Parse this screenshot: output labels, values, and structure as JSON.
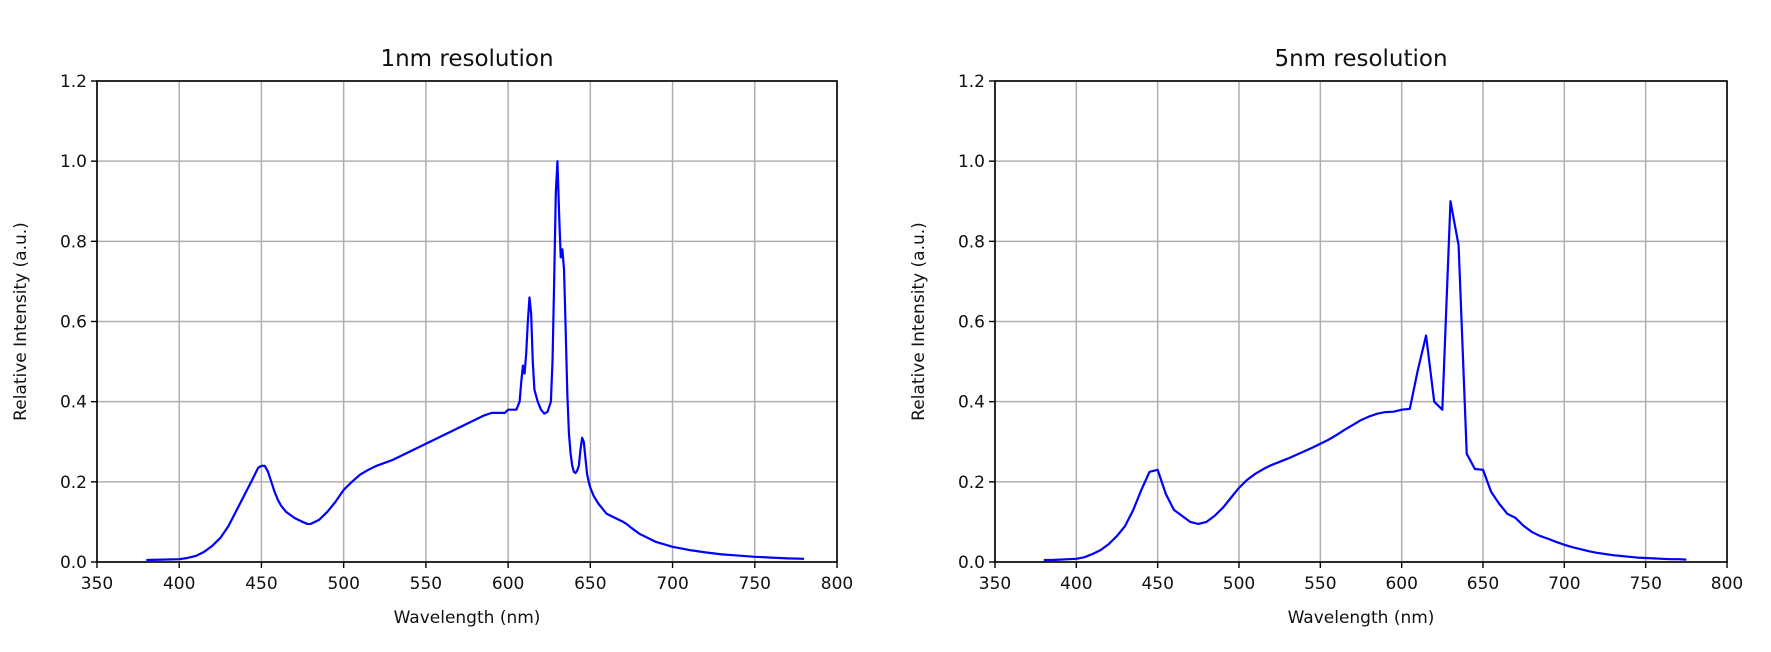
{
  "figure": {
    "background": "#ffffff"
  },
  "chart_data": [
    {
      "type": "line",
      "title": "1nm resolution",
      "xlabel": "Wavelength (nm)",
      "ylabel": "Relative Intensity (a.u.)",
      "xlim": [
        350,
        800
      ],
      "ylim": [
        0.0,
        1.2
      ],
      "xticks": [
        "350",
        "400",
        "450",
        "500",
        "550",
        "600",
        "650",
        "700",
        "750",
        "800"
      ],
      "yticks": [
        "0.0",
        "0.2",
        "0.4",
        "0.6",
        "0.8",
        "1.0",
        "1.2"
      ],
      "grid": true,
      "legend": "none",
      "series": [
        {
          "color": "#0000ff",
          "x": [
            380,
            390,
            400,
            405,
            410,
            415,
            420,
            425,
            430,
            435,
            440,
            445,
            448,
            450,
            452,
            454,
            456,
            458,
            460,
            462,
            465,
            470,
            475,
            478,
            480,
            485,
            490,
            495,
            500,
            505,
            510,
            515,
            520,
            530,
            540,
            550,
            560,
            570,
            580,
            585,
            590,
            595,
            598,
            600,
            603,
            605,
            607,
            608,
            609,
            610,
            611,
            612,
            613,
            614,
            615,
            616,
            618,
            620,
            622,
            624,
            626,
            627,
            628,
            629,
            630,
            631,
            632,
            633,
            634,
            635,
            636,
            637,
            638,
            639,
            640,
            641,
            642,
            643,
            644,
            645,
            646,
            647,
            648,
            649,
            650,
            652,
            655,
            658,
            660,
            665,
            670,
            672,
            675,
            680,
            690,
            700,
            710,
            720,
            730,
            740,
            750,
            760,
            770,
            780
          ],
          "y": [
            0.005,
            0.006,
            0.007,
            0.01,
            0.015,
            0.025,
            0.04,
            0.06,
            0.09,
            0.13,
            0.17,
            0.21,
            0.235,
            0.24,
            0.24,
            0.225,
            0.2,
            0.175,
            0.155,
            0.14,
            0.125,
            0.11,
            0.1,
            0.095,
            0.095,
            0.105,
            0.125,
            0.15,
            0.18,
            0.2,
            0.218,
            0.23,
            0.24,
            0.255,
            0.275,
            0.295,
            0.315,
            0.335,
            0.355,
            0.365,
            0.372,
            0.372,
            0.372,
            0.38,
            0.38,
            0.38,
            0.4,
            0.45,
            0.49,
            0.47,
            0.52,
            0.6,
            0.66,
            0.62,
            0.5,
            0.43,
            0.4,
            0.38,
            0.37,
            0.375,
            0.4,
            0.5,
            0.7,
            0.92,
            1.0,
            0.87,
            0.76,
            0.78,
            0.73,
            0.58,
            0.42,
            0.32,
            0.27,
            0.24,
            0.225,
            0.222,
            0.228,
            0.24,
            0.28,
            0.31,
            0.3,
            0.26,
            0.22,
            0.2,
            0.185,
            0.165,
            0.145,
            0.13,
            0.12,
            0.11,
            0.1,
            0.095,
            0.085,
            0.07,
            0.05,
            0.038,
            0.03,
            0.024,
            0.019,
            0.016,
            0.013,
            0.011,
            0.009,
            0.008
          ]
        }
      ]
    },
    {
      "type": "line",
      "title": "5nm resolution",
      "xlabel": "Wavelength (nm)",
      "ylabel": "Relative Intensity (a.u.)",
      "xlim": [
        350,
        800
      ],
      "ylim": [
        0.0,
        1.2
      ],
      "xticks": [
        "350",
        "400",
        "450",
        "500",
        "550",
        "600",
        "650",
        "700",
        "750",
        "800"
      ],
      "yticks": [
        "0.0",
        "0.2",
        "0.4",
        "0.6",
        "0.8",
        "1.0",
        "1.2"
      ],
      "grid": true,
      "legend": "none",
      "series": [
        {
          "color": "#0000ff",
          "x": [
            380,
            385,
            390,
            395,
            400,
            405,
            410,
            415,
            420,
            425,
            430,
            435,
            440,
            445,
            450,
            455,
            460,
            465,
            470,
            475,
            480,
            485,
            490,
            495,
            500,
            505,
            510,
            515,
            520,
            525,
            530,
            535,
            540,
            545,
            550,
            555,
            560,
            565,
            570,
            575,
            580,
            585,
            590,
            595,
            600,
            605,
            610,
            615,
            620,
            625,
            630,
            635,
            640,
            645,
            650,
            655,
            660,
            665,
            670,
            675,
            680,
            685,
            690,
            695,
            700,
            705,
            710,
            715,
            720,
            725,
            730,
            735,
            740,
            745,
            750,
            755,
            760,
            765,
            770,
            775
          ],
          "y": [
            0.005,
            0.005,
            0.006,
            0.007,
            0.008,
            0.012,
            0.02,
            0.03,
            0.045,
            0.065,
            0.09,
            0.13,
            0.18,
            0.225,
            0.23,
            0.17,
            0.13,
            0.115,
            0.1,
            0.095,
            0.1,
            0.115,
            0.135,
            0.16,
            0.185,
            0.205,
            0.22,
            0.232,
            0.242,
            0.25,
            0.258,
            0.267,
            0.276,
            0.285,
            0.295,
            0.305,
            0.317,
            0.33,
            0.342,
            0.354,
            0.363,
            0.37,
            0.374,
            0.375,
            0.38,
            0.382,
            0.48,
            0.565,
            0.4,
            0.38,
            0.9,
            0.79,
            0.27,
            0.232,
            0.23,
            0.175,
            0.145,
            0.12,
            0.11,
            0.09,
            0.075,
            0.065,
            0.058,
            0.05,
            0.043,
            0.037,
            0.032,
            0.027,
            0.023,
            0.02,
            0.017,
            0.015,
            0.013,
            0.011,
            0.01,
            0.009,
            0.008,
            0.007,
            0.007,
            0.006
          ]
        }
      ]
    }
  ]
}
